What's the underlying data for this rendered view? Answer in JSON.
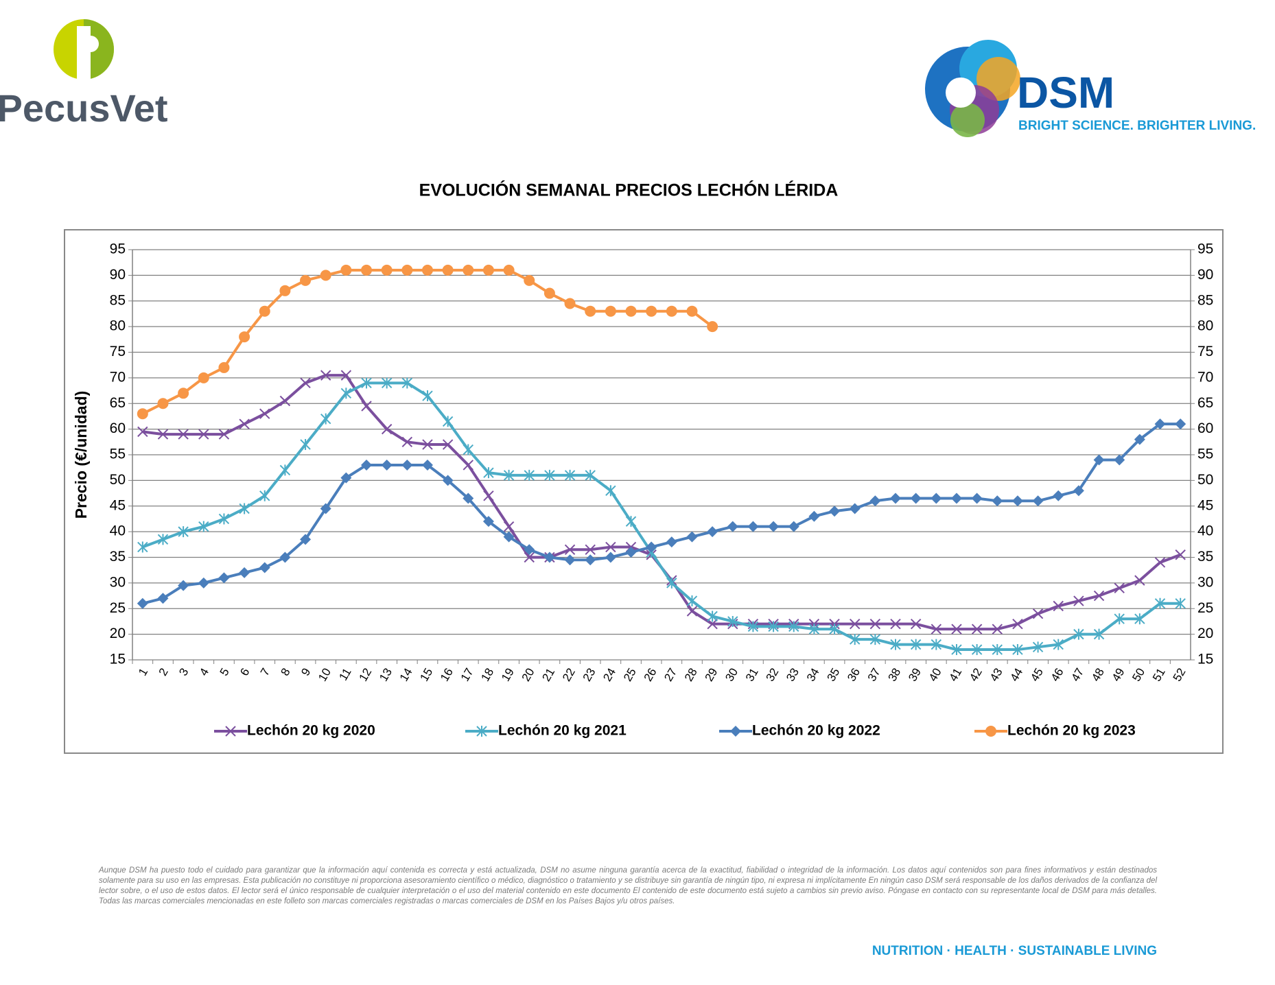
{
  "header": {
    "left_logo": "PecusVet",
    "right_logo": "DSM",
    "tagline": "BRIGHT SCIENCE. BRIGHTER LIVING."
  },
  "chart_data": {
    "type": "line",
    "title": "EVOLUCIÓN SEMANAL PRECIOS LECHÓN LÉRIDA",
    "y_label": "Precio (€/unidad)",
    "categories": [
      1,
      2,
      3,
      4,
      5,
      6,
      7,
      8,
      9,
      10,
      11,
      12,
      13,
      14,
      15,
      16,
      17,
      18,
      19,
      20,
      21,
      22,
      23,
      24,
      25,
      26,
      27,
      28,
      29,
      30,
      31,
      32,
      33,
      34,
      35,
      36,
      37,
      38,
      39,
      40,
      41,
      42,
      43,
      44,
      45,
      46,
      47,
      48,
      49,
      50,
      51,
      52
    ],
    "ylim": [
      15,
      95
    ],
    "yticks": [
      15,
      20,
      25,
      30,
      35,
      40,
      45,
      50,
      55,
      60,
      65,
      70,
      75,
      80,
      85,
      90,
      95
    ],
    "y2lim": [
      15,
      95
    ],
    "y2ticks": [
      15,
      20,
      25,
      30,
      35,
      40,
      45,
      50,
      55,
      60,
      65,
      70,
      75,
      80,
      85,
      90,
      95
    ],
    "grid": true,
    "legend": "bottom",
    "series": [
      {
        "name": "Lechón 20 kg 2020",
        "color": "#7b4f9e",
        "marker": "x",
        "values": [
          59.5,
          59,
          59,
          59,
          59,
          61,
          63,
          65.5,
          69,
          70.5,
          70.5,
          64.5,
          60,
          57.5,
          57,
          57,
          53,
          47,
          41,
          35,
          35,
          36.5,
          36.5,
          37,
          37,
          35.5,
          30.5,
          24.5,
          22,
          22,
          22,
          22,
          22,
          22,
          22,
          22,
          22,
          22,
          22,
          21,
          21,
          21,
          21,
          22,
          24,
          25.5,
          26.5,
          27.5,
          29,
          30.5,
          34,
          35.5
        ]
      },
      {
        "name": "Lechón 20 kg 2021",
        "color": "#4bacc6",
        "marker": "star",
        "values": [
          37,
          38.5,
          40,
          41,
          42.5,
          44.5,
          47,
          52,
          57,
          62,
          67,
          69,
          69,
          69,
          66.5,
          61.5,
          56,
          51.5,
          51,
          51,
          51,
          51,
          51,
          48,
          42,
          36,
          30,
          26.5,
          23.5,
          22.5,
          21.5,
          21.5,
          21.5,
          21,
          21,
          19,
          19,
          18,
          18,
          18,
          17,
          17,
          17,
          17,
          17.5,
          18,
          20,
          20,
          23,
          23,
          26,
          26
        ]
      },
      {
        "name": "Lechón 20 kg 2022",
        "color": "#4a7ebb",
        "marker": "diamond",
        "values": [
          26,
          27,
          29.5,
          30,
          31,
          32,
          33,
          35,
          38.5,
          44.5,
          50.5,
          53,
          53,
          53,
          53,
          50,
          46.5,
          42,
          39,
          36.5,
          35,
          34.5,
          34.5,
          35,
          36,
          37,
          38,
          39,
          40,
          41,
          41,
          41,
          41,
          43,
          44,
          44.5,
          46,
          46.5,
          46.5,
          46.5,
          46.5,
          46.5,
          46,
          46,
          46,
          47,
          48,
          54,
          54,
          58,
          61,
          61
        ]
      },
      {
        "name": "Lechón 20 kg 2023",
        "color": "#f79646",
        "marker": "circle",
        "values": [
          63,
          65,
          67,
          70,
          72,
          78,
          83,
          87,
          89,
          90,
          91,
          91,
          91,
          91,
          91,
          91,
          91,
          91,
          91,
          89,
          86.5,
          84.5,
          83,
          83,
          83,
          83,
          83,
          83,
          80,
          null,
          null,
          null,
          null,
          null,
          null,
          null,
          null,
          null,
          null,
          null,
          null,
          null,
          null,
          null,
          null,
          null,
          null,
          null,
          null,
          null,
          null,
          null
        ]
      }
    ]
  },
  "disclaimer": "Aunque DSM ha puesto todo el cuidado para garantizar que la información aquí contenida es correcta y está actualizada, DSM no asume ninguna garantía acerca de la exactitud, fiabilidad o integridad de la información. Los datos aquí contenidos son para fines informativos y están destinados solamente para su uso en las empresas. Esta publicación no constituye ni proporciona asesoramiento científico o médico, diagnóstico o tratamiento y se distribuye sin garantía de ningún tipo, ni expresa ni implícitamente En ningún caso DSM será responsable de los daños derivados de la confianza del lector sobre, o el uso de estos datos. El lector será el único responsable de cualquier interpretación o el uso del material contenido en este documento El contenido de este documento está sujeto a cambios sin previo aviso. Póngase en contacto con su representante local de DSM para más detalles. Todas las marcas comerciales mencionadas en este folleto son marcas comerciales registradas o marcas comerciales de DSM en los Países Bajos y/u otros países.",
  "footer": "NUTRITION · HEALTH · SUSTAINABLE LIVING"
}
